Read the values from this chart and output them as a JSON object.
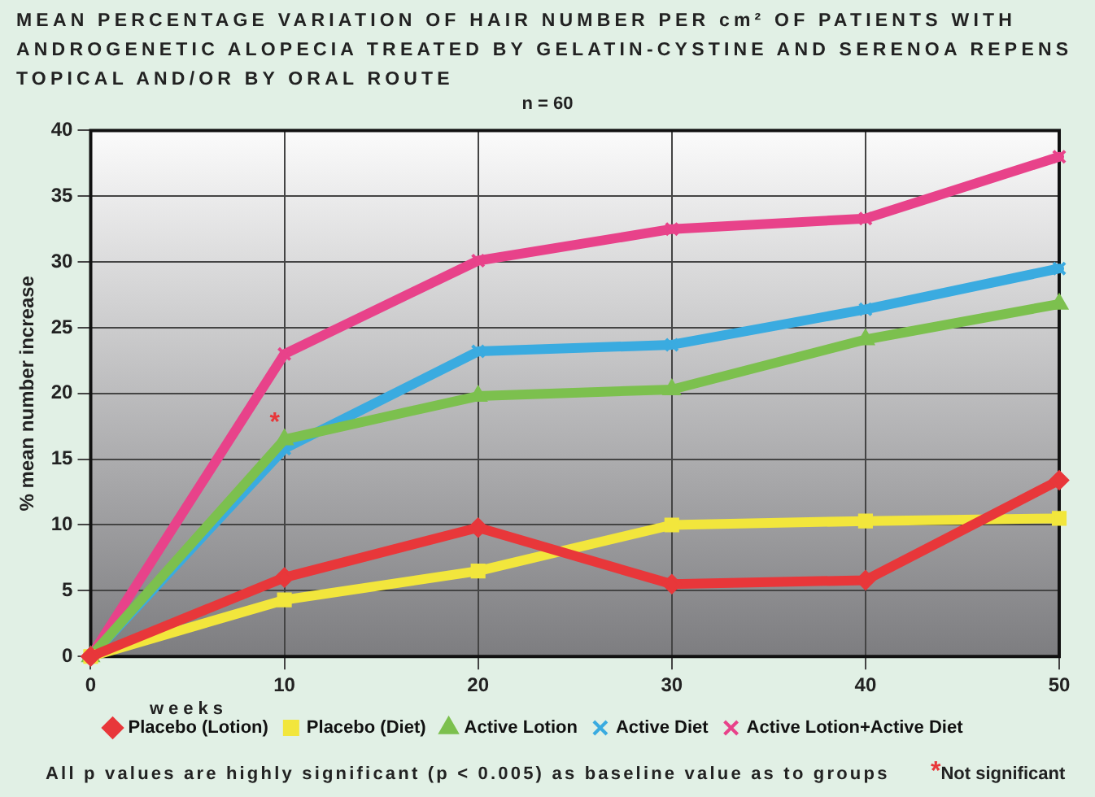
{
  "chart_data": {
    "type": "line",
    "title": "MEAN PERCENTAGE VARIATION OF HAIR  NUMBER PER cm² OF PATIENTS WITH ANDROGENETIC ALOPECIA TREATED BY  GELATIN-CYSTINE  AND SERENOA REPENS TOPICAL AND/OR  BY ORAL ROUTE",
    "subtitle": "n = 60",
    "xlabel": "weeks",
    "ylabel": "% mean number increase",
    "x": [
      0,
      10,
      20,
      30,
      40,
      50
    ],
    "series": [
      {
        "name": "Placebo (Lotion)",
        "color": "#e8373a",
        "marker": "diamond",
        "values": [
          0,
          6,
          9.8,
          5.5,
          5.8,
          13.4
        ]
      },
      {
        "name": "Placebo (Diet)",
        "color": "#f2e63c",
        "marker": "square",
        "values": [
          0,
          4.3,
          6.5,
          10,
          10.3,
          10.5
        ]
      },
      {
        "name": "Active Lotion",
        "color": "#7cc04e",
        "marker": "triangle",
        "values": [
          0,
          16.5,
          19.8,
          20.3,
          24.1,
          26.8
        ]
      },
      {
        "name": "Active Diet",
        "color": "#3aabe0",
        "marker": "cross",
        "values": [
          0,
          15.8,
          23.2,
          23.7,
          26.4,
          29.5
        ]
      },
      {
        "name": "Active Lotion+Active Diet",
        "color": "#e8428a",
        "marker": "cross",
        "values": [
          0,
          23,
          30.1,
          32.5,
          33.3,
          38
        ]
      }
    ],
    "xlim": [
      0,
      50
    ],
    "xticks": [
      0,
      10,
      20,
      30,
      40,
      50
    ],
    "ylim": [
      0,
      40
    ],
    "yticks": [
      0,
      5,
      10,
      15,
      20,
      25,
      30,
      35,
      40
    ],
    "grid": true,
    "legend": "bottom",
    "line_style": "solid",
    "annotations": [
      {
        "text": "*",
        "x": 10,
        "y": 16.5
      },
      "All p values are highly significant (p < 0.005) as baseline value as to groups",
      "*Not significant"
    ]
  }
}
